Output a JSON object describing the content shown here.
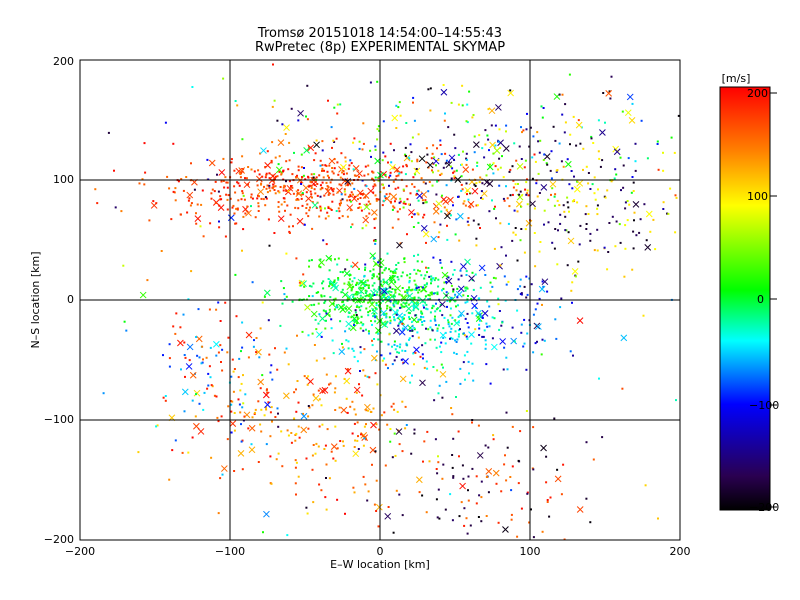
{
  "chart_data": {
    "type": "scatter",
    "title": "Tromsø 20151018 14:54:00–14:55:43",
    "subtitle": "RwPretec (8p) EXPERIMENTAL SKYMAP",
    "xlabel": "E–W location [km]",
    "ylabel": "N–S location [km]",
    "xlim": [
      -200,
      200
    ],
    "ylim": [
      -200,
      200
    ],
    "xticks": [
      "−200",
      "−100",
      "0",
      "100",
      "200"
    ],
    "yticks": [
      "−200",
      "−100",
      "0",
      "100",
      "200"
    ],
    "grid_lines_x": [
      -100,
      0,
      100
    ],
    "grid_lines_y": [
      -100,
      0,
      100
    ],
    "marker_types": [
      "small dot",
      "cross"
    ],
    "colorbar": {
      "label": "[m/s]",
      "range": [
        -200,
        200
      ],
      "ticks": [
        "200",
        "100",
        "0",
        "−100",
        "−200"
      ],
      "colormap": "rainbow",
      "stops": [
        "#000000",
        "#2a0050",
        "#0000ff",
        "#00ffff",
        "#00ff00",
        "#ffff00",
        "#ff8000",
        "#ff0000"
      ]
    },
    "clusters": [
      {
        "region": "north band",
        "x_range": [
          -130,
          200
        ],
        "y_range": [
          40,
          190
        ],
        "velocity_range": [
          -200,
          200
        ],
        "dominant": "red west of 0, mixed blue/black/yellow east of 0"
      },
      {
        "region": "center",
        "x_range": [
          -80,
          100
        ],
        "y_range": [
          -50,
          50
        ],
        "velocity_range": [
          -120,
          60
        ],
        "dominant": "green/cyan"
      },
      {
        "region": "southwest",
        "x_range": [
          -150,
          0
        ],
        "y_range": [
          -200,
          -40
        ],
        "velocity_range": [
          -200,
          200
        ],
        "dominant": "red/orange/yellow"
      },
      {
        "region": "southeast",
        "x_range": [
          0,
          120
        ],
        "y_range": [
          -200,
          -60
        ],
        "velocity_range": [
          -200,
          200
        ],
        "dominant": "black/red sparse"
      }
    ]
  }
}
